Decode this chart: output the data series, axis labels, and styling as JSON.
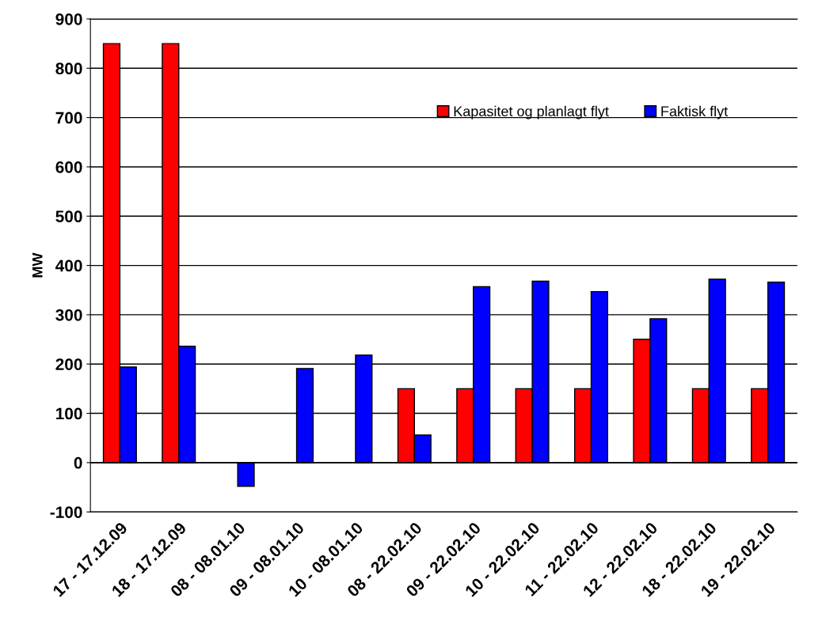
{
  "chart_data": {
    "type": "bar",
    "ylabel": "MW",
    "categories": [
      "17 - 17.12.09",
      "18 - 17.12.09",
      "08 - 08.01.10",
      "09 - 08.01.10",
      "10 - 08.01.10",
      "08 - 22.02.10",
      "09 - 22.02.10",
      "10 - 22.02.10",
      "11 - 22.02.10",
      "12 - 22.02.10",
      "18 - 22.02.10",
      "19 - 22.02.10"
    ],
    "series": [
      {
        "name": "Kapasitet og planlagt flyt",
        "color": "#ff0000",
        "values": [
          850,
          850,
          null,
          null,
          null,
          150,
          150,
          150,
          150,
          250,
          150,
          150
        ]
      },
      {
        "name": "Faktisk flyt",
        "color": "#0000ff",
        "values": [
          194,
          236,
          -48,
          191,
          218,
          56,
          357,
          368,
          347,
          292,
          372,
          366
        ]
      }
    ],
    "ylim": [
      -100,
      900
    ],
    "yticks": [
      -100,
      0,
      100,
      200,
      300,
      400,
      500,
      600,
      700,
      800,
      900
    ],
    "grid": "y",
    "legend": "top right"
  }
}
